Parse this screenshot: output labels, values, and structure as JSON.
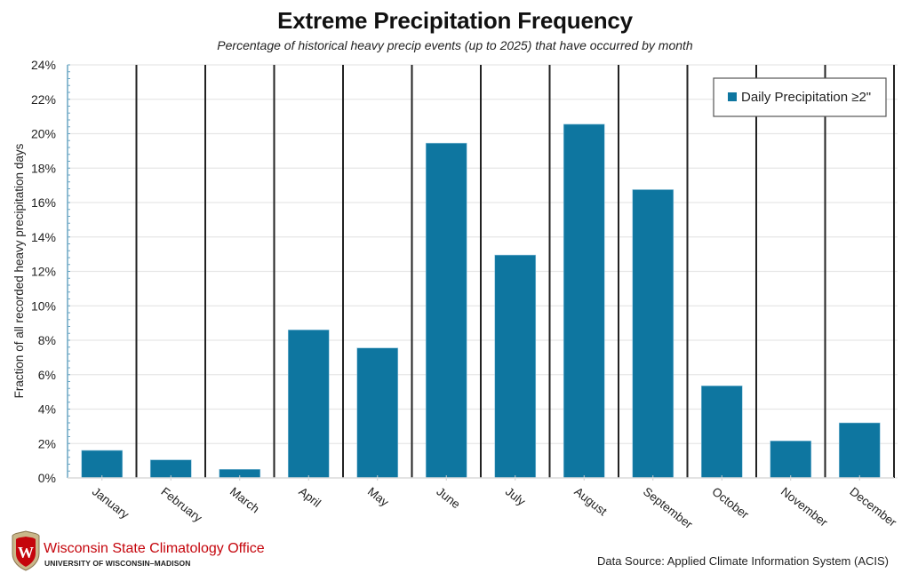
{
  "chart_data": {
    "type": "bar",
    "title": "Extreme Precipitation Frequency",
    "subtitle": "Percentage of historical heavy precip events (up to 2025) that have occurred by month",
    "xlabel": "",
    "ylabel": "Fraction of all recorded heavy precipitation days",
    "categories": [
      "January",
      "February",
      "March",
      "April",
      "May",
      "June",
      "July",
      "August",
      "September",
      "October",
      "November",
      "December"
    ],
    "series": [
      {
        "name": "Daily Precipitation ≥2\"",
        "color": "#0e76a0",
        "values": [
          1.6,
          1.05,
          0.5,
          8.6,
          7.55,
          19.45,
          12.95,
          20.55,
          16.75,
          5.35,
          2.15,
          3.2
        ]
      }
    ],
    "ylim": [
      0,
      24
    ],
    "yticks": [
      0,
      2,
      4,
      6,
      8,
      10,
      12,
      14,
      16,
      18,
      20,
      22,
      24
    ],
    "ytick_labels": [
      "0%",
      "2%",
      "4%",
      "6%",
      "8%",
      "10%",
      "12%",
      "14%",
      "16%",
      "18%",
      "20%",
      "22%",
      "24%"
    ],
    "grid": true,
    "legend": {
      "position": "top-right",
      "entries": [
        "Daily Precipitation ≥2\""
      ]
    },
    "colors": {
      "bar": "#0e76a0",
      "separator": "#222222",
      "grid": "#e6e6e6",
      "axis": "#6aa6c4"
    }
  },
  "footer": {
    "org_name": "Wisconsin State Climatology Office",
    "org_sub": "UNIVERSITY OF WISCONSIN–MADISON",
    "source": "Data Source: Applied Climate Information System (ACIS)",
    "logo_icon": "uw-crest-icon"
  }
}
